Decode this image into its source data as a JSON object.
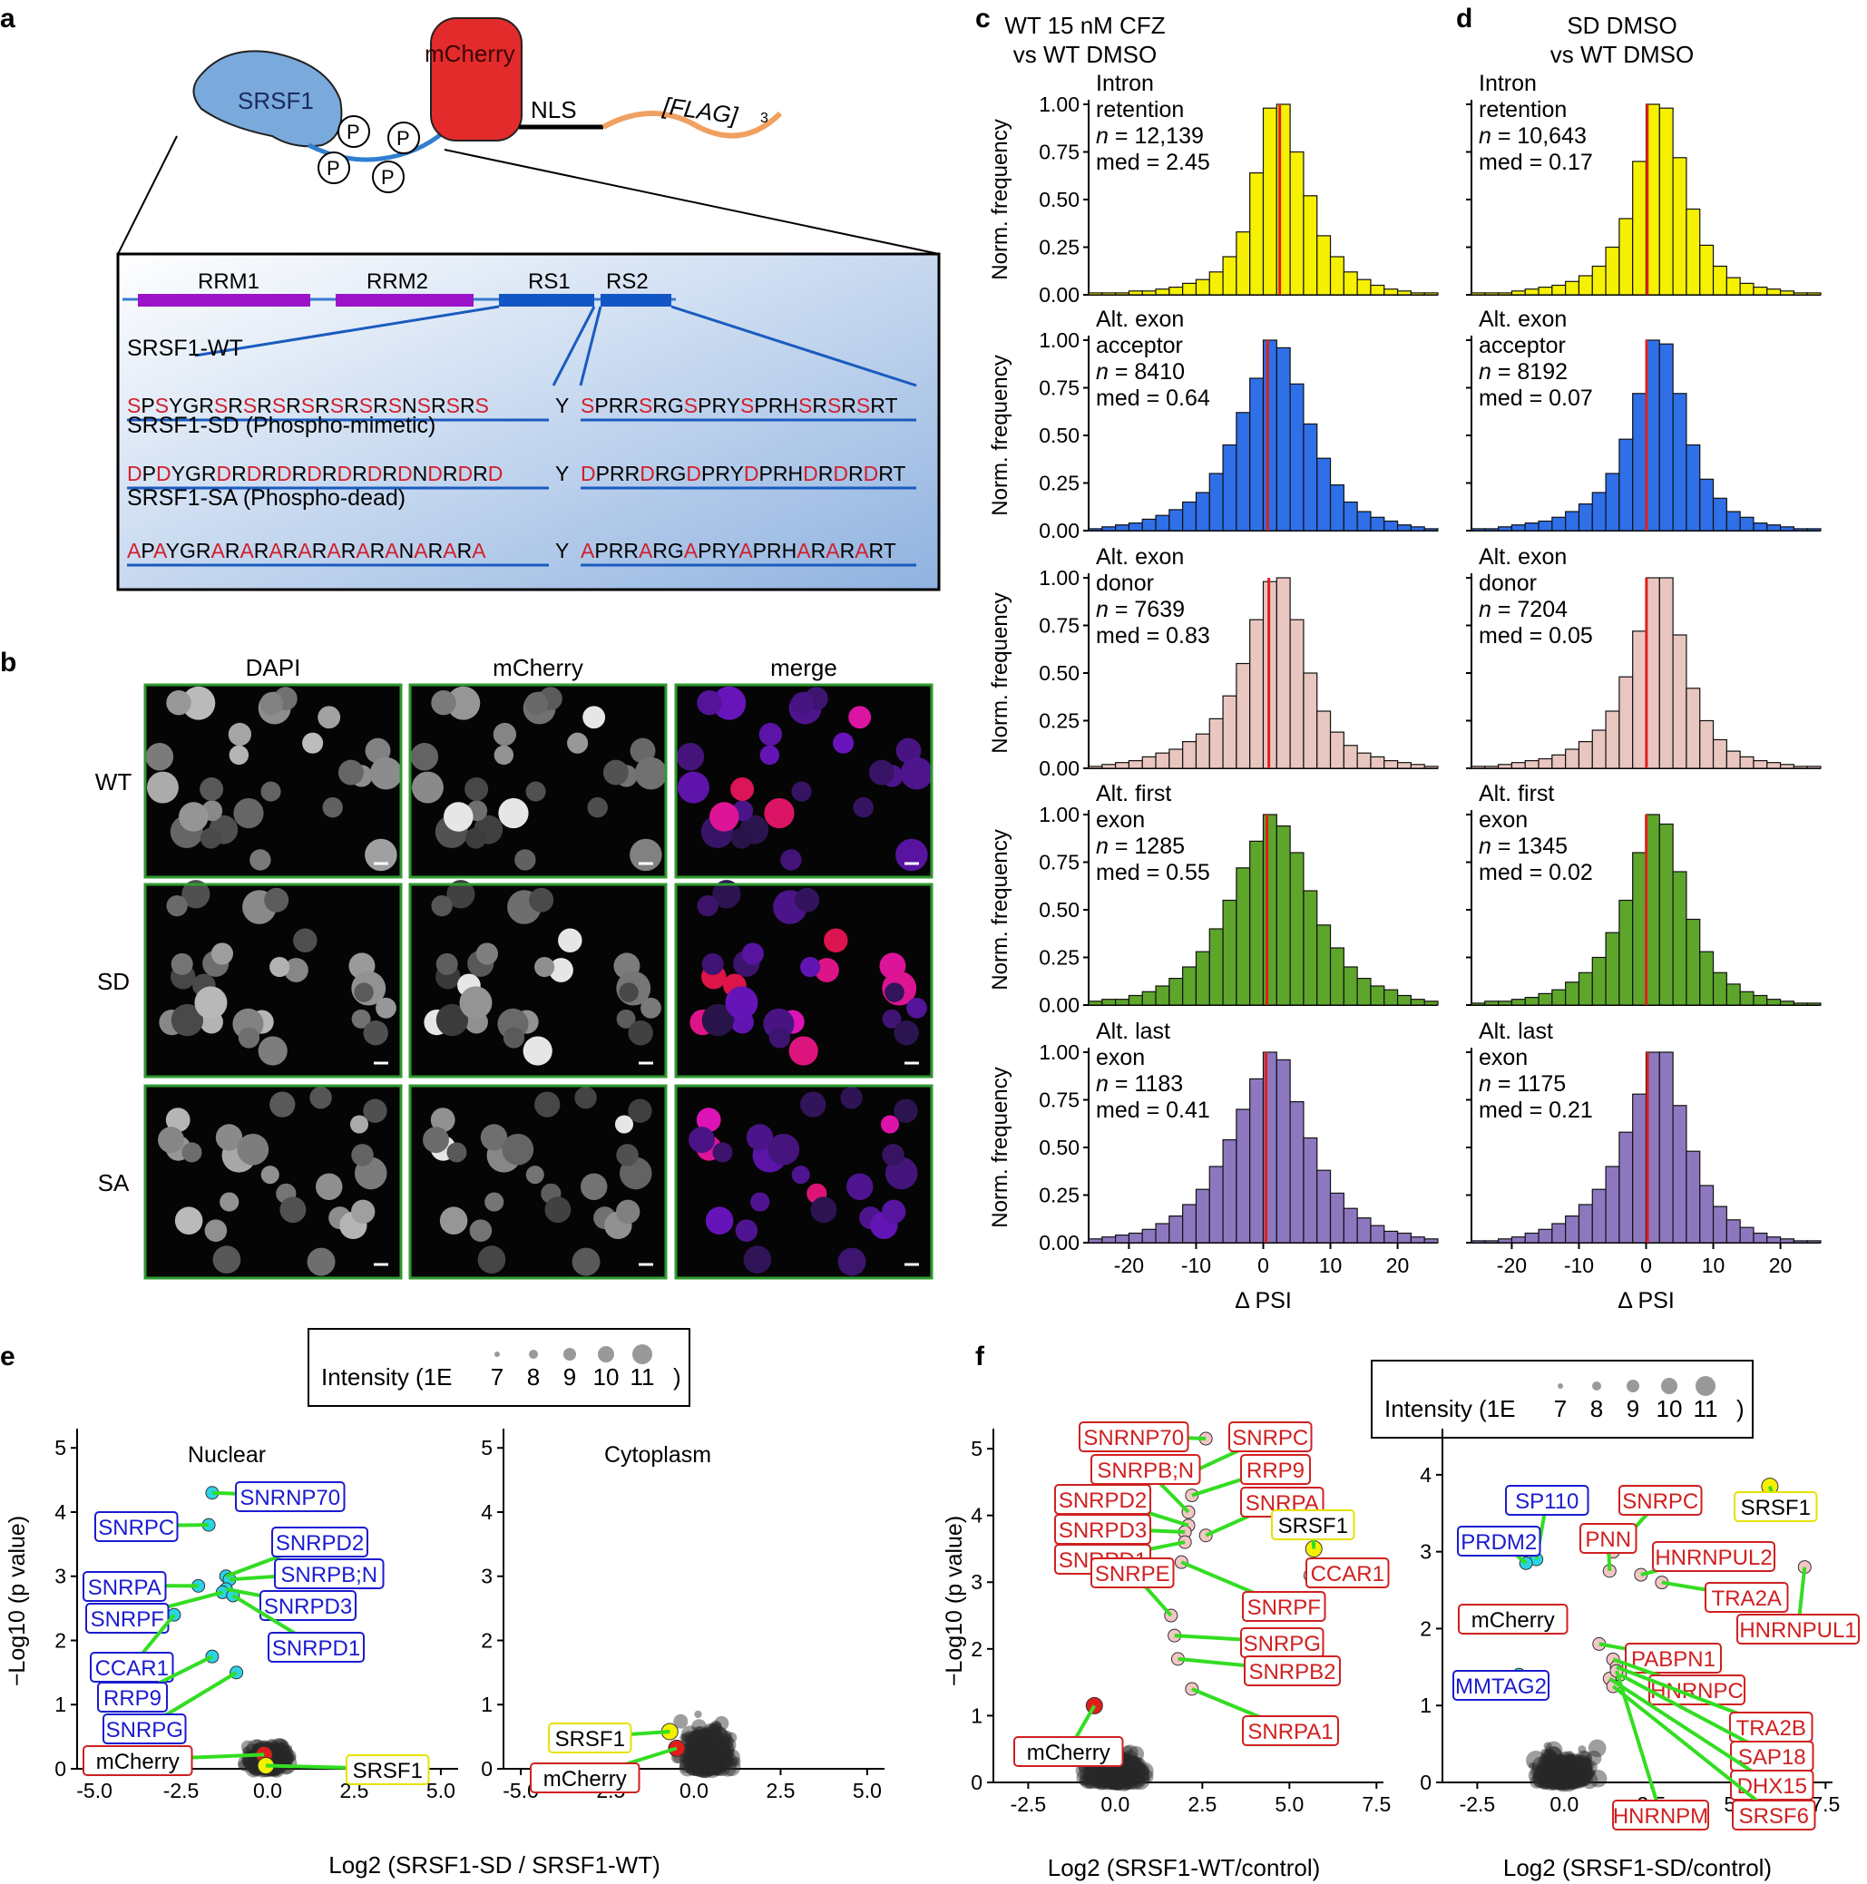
{
  "panels": {
    "a": {
      "letter": "a",
      "construct": {
        "srsf1": "SRSF1",
        "mcherry": "mCherry",
        "nls": "NLS",
        "flag": "[FLAG]",
        "flag_sub": "3",
        "p": "P"
      },
      "domains": {
        "rrm1": "RRM1",
        "rrm2": "RRM2",
        "rs1": "RS1",
        "rs2": "RS2"
      },
      "colors": {
        "rrm": "#9b14c9",
        "rs": "#1255c4",
        "accent_red": "#d11e2a",
        "box_line": "#1a5bbf"
      },
      "variants": [
        {
          "label": "SRSF1-WT",
          "seq1": "SPSYGRSRSRSRSRSRSRSNSRSRS",
          "mid": "Y",
          "seq2": "SPRRSRGSPRYSPRHSRSRSRT",
          "mut": "S"
        },
        {
          "label": "SRSF1-SD (Phospho-mimetic)",
          "seq1": "DPDYGRDRDRDRDRDRDRDNDRDRD",
          "mid": "Y",
          "seq2": "DPRRDRGDPRYDPRHDRDRDRT",
          "mut": "D"
        },
        {
          "label": "SRSF1-SA (Phospho-dead)",
          "seq1": "APAYGRARARARARARARANARARA",
          "mid": "Y",
          "seq2": "APRRARGAPRYAPRHARARART",
          "mut": "A"
        }
      ]
    },
    "b": {
      "letter": "b",
      "columns": [
        "DAPI",
        "mCherry",
        "merge"
      ],
      "rows": [
        "WT",
        "SD",
        "SA"
      ]
    },
    "c": {
      "letter": "c",
      "title_line1": "WT 15 nM CFZ",
      "title_line2": "vs WT DMSO",
      "stats": [
        {
          "line1": "Intron",
          "line2": "retention",
          "n": "12,139",
          "med": "2.45"
        },
        {
          "line1": "Alt. exon",
          "line2": "acceptor",
          "n": "8410",
          "med": "0.64"
        },
        {
          "line1": "Alt. exon",
          "line2": "donor",
          "n": "7639",
          "med": "0.83"
        },
        {
          "line1": "Alt. first",
          "line2": "exon",
          "n": "1285",
          "med": "0.55"
        },
        {
          "line1": "Alt. last",
          "line2": "exon",
          "n": "1183",
          "med": "0.41"
        }
      ]
    },
    "d": {
      "letter": "d",
      "title_line1": "SD DMSO",
      "title_line2": "vs WT DMSO",
      "stats": [
        {
          "line1": "Intron",
          "line2": "retention",
          "n": "10,643",
          "med": "0.17"
        },
        {
          "line1": "Alt. exon",
          "line2": "acceptor",
          "n": "8192",
          "med": "0.07"
        },
        {
          "line1": "Alt. exon",
          "line2": "donor",
          "n": "7204",
          "med": "0.05"
        },
        {
          "line1": "Alt. first",
          "line2": "exon",
          "n": "1345",
          "med": "0.02"
        },
        {
          "line1": "Alt. last",
          "line2": "exon",
          "n": "1175",
          "med": "0.21"
        }
      ]
    },
    "e": {
      "letter": "e",
      "legend": {
        "label": "Intensity (1E",
        "sizes": [
          "7",
          "8",
          "9",
          "10",
          "11"
        ],
        "close": ")"
      },
      "left_title": "Nuclear",
      "right_title": "Cytoplasm",
      "ylabel": "−Log10 (p value)",
      "xlabel": "Log2 (SRSF1-SD / SRSF1-WT)"
    },
    "f": {
      "letter": "f",
      "legend": {
        "label": "Intensity (1E",
        "sizes": [
          "7",
          "8",
          "9",
          "10",
          "11"
        ],
        "close": ")"
      },
      "xlabel_left": "Log2 (SRSF1-WT/control)",
      "xlabel_right": "Log2 (SRSF1-SD/control)"
    }
  },
  "chart_data": [
    {
      "type": "bar",
      "panel": "c",
      "title": "WT 15 nM CFZ vs WT DMSO",
      "xlabel": "Δ PSI",
      "ylabel": "Norm. frequency",
      "xlim": [
        -26,
        26
      ],
      "ylim": [
        0,
        1.0
      ],
      "xticks": [
        "-20",
        "-10",
        "0",
        "10",
        "20"
      ],
      "yticks": [
        "0.00",
        "0.25",
        "0.50",
        "0.75",
        "1.00"
      ],
      "bin_edges": [
        -26,
        -24,
        -22,
        -20,
        -18,
        -16,
        -14,
        -12,
        -10,
        -8,
        -6,
        -4,
        -2,
        0,
        2,
        4,
        6,
        8,
        10,
        12,
        14,
        16,
        18,
        20,
        22,
        24,
        26
      ],
      "median_line_color": "#e0201b",
      "series": [
        {
          "name": "Intron retention",
          "color": "#f6f003",
          "values": [
            0.01,
            0.01,
            0.01,
            0.02,
            0.02,
            0.03,
            0.04,
            0.06,
            0.08,
            0.12,
            0.2,
            0.33,
            0.64,
            0.98,
            1.0,
            0.75,
            0.52,
            0.31,
            0.2,
            0.12,
            0.08,
            0.05,
            0.03,
            0.02,
            0.01,
            0.01
          ]
        },
        {
          "name": "Alt. exon acceptor",
          "color": "#2f6fe8",
          "values": [
            0.01,
            0.02,
            0.03,
            0.04,
            0.06,
            0.08,
            0.11,
            0.15,
            0.2,
            0.3,
            0.45,
            0.62,
            0.8,
            1.0,
            0.96,
            0.77,
            0.56,
            0.38,
            0.24,
            0.15,
            0.1,
            0.07,
            0.05,
            0.03,
            0.02,
            0.01
          ]
        },
        {
          "name": "Alt. exon donor",
          "color": "#eac6c0",
          "values": [
            0.01,
            0.02,
            0.03,
            0.04,
            0.06,
            0.08,
            0.1,
            0.14,
            0.18,
            0.26,
            0.38,
            0.55,
            0.78,
            0.98,
            1.0,
            0.78,
            0.5,
            0.3,
            0.19,
            0.12,
            0.08,
            0.06,
            0.04,
            0.03,
            0.02,
            0.01
          ]
        },
        {
          "name": "Alt. first exon",
          "color": "#5ea52c",
          "values": [
            0.02,
            0.03,
            0.03,
            0.05,
            0.07,
            0.1,
            0.14,
            0.2,
            0.28,
            0.4,
            0.55,
            0.72,
            0.86,
            1.0,
            0.94,
            0.8,
            0.6,
            0.42,
            0.3,
            0.2,
            0.14,
            0.1,
            0.08,
            0.05,
            0.03,
            0.02
          ]
        },
        {
          "name": "Alt. last exon",
          "color": "#8d78c0",
          "values": [
            0.02,
            0.03,
            0.04,
            0.05,
            0.07,
            0.1,
            0.14,
            0.2,
            0.28,
            0.4,
            0.54,
            0.7,
            0.86,
            1.0,
            0.96,
            0.74,
            0.55,
            0.38,
            0.26,
            0.18,
            0.13,
            0.09,
            0.06,
            0.05,
            0.03,
            0.02
          ]
        }
      ]
    },
    {
      "type": "bar",
      "panel": "d",
      "title": "SD DMSO vs WT DMSO",
      "xlabel": "Δ PSI",
      "ylabel": "",
      "xlim": [
        -26,
        26
      ],
      "ylim": [
        0,
        1.0
      ],
      "xticks": [
        "-20",
        "-10",
        "0",
        "10",
        "20"
      ],
      "bin_edges": [
        -26,
        -24,
        -22,
        -20,
        -18,
        -16,
        -14,
        -12,
        -10,
        -8,
        -6,
        -4,
        -2,
        0,
        2,
        4,
        6,
        8,
        10,
        12,
        14,
        16,
        18,
        20,
        22,
        24,
        26
      ],
      "median_line_color": "#e0201b",
      "series": [
        {
          "name": "Intron retention",
          "color": "#f6f003",
          "values": [
            0.01,
            0.01,
            0.01,
            0.02,
            0.03,
            0.04,
            0.05,
            0.07,
            0.1,
            0.15,
            0.25,
            0.4,
            0.7,
            1.0,
            0.98,
            0.72,
            0.45,
            0.26,
            0.15,
            0.09,
            0.06,
            0.04,
            0.03,
            0.02,
            0.01,
            0.01
          ]
        },
        {
          "name": "Alt. exon acceptor",
          "color": "#2f6fe8",
          "values": [
            0.01,
            0.01,
            0.02,
            0.03,
            0.04,
            0.05,
            0.07,
            0.1,
            0.14,
            0.2,
            0.3,
            0.48,
            0.72,
            1.0,
            0.98,
            0.72,
            0.45,
            0.27,
            0.17,
            0.1,
            0.07,
            0.04,
            0.03,
            0.02,
            0.01,
            0.01
          ]
        },
        {
          "name": "Alt. exon donor",
          "color": "#eac6c0",
          "values": [
            0.01,
            0.01,
            0.02,
            0.03,
            0.04,
            0.05,
            0.07,
            0.1,
            0.14,
            0.2,
            0.3,
            0.48,
            0.72,
            1.0,
            1.0,
            0.7,
            0.42,
            0.25,
            0.15,
            0.09,
            0.06,
            0.04,
            0.03,
            0.02,
            0.01,
            0.01
          ]
        },
        {
          "name": "Alt. first exon",
          "color": "#5ea52c",
          "values": [
            0.01,
            0.02,
            0.02,
            0.03,
            0.04,
            0.06,
            0.08,
            0.12,
            0.17,
            0.25,
            0.38,
            0.55,
            0.8,
            1.0,
            0.95,
            0.7,
            0.45,
            0.28,
            0.17,
            0.11,
            0.07,
            0.05,
            0.03,
            0.02,
            0.01,
            0.01
          ]
        },
        {
          "name": "Alt. last exon",
          "color": "#8d78c0",
          "values": [
            0.01,
            0.01,
            0.02,
            0.03,
            0.05,
            0.07,
            0.1,
            0.14,
            0.2,
            0.28,
            0.4,
            0.58,
            0.78,
            1.0,
            1.0,
            0.72,
            0.48,
            0.3,
            0.19,
            0.12,
            0.08,
            0.05,
            0.03,
            0.02,
            0.01,
            0.01
          ]
        }
      ]
    },
    {
      "type": "scatter",
      "panel": "e-nuclear",
      "title": "Nuclear",
      "xlabel": "Log2 (SRSF1-SD / SRSF1-WT)",
      "ylabel": "−Log10 (p value)",
      "xlim": [
        -5.5,
        5.5
      ],
      "ylim": [
        0,
        5.3
      ],
      "xticks": [
        "-5.0",
        "-2.5",
        "0.0",
        "2.5",
        "5.0"
      ],
      "yticks": [
        "0",
        "1",
        "2",
        "3",
        "4",
        "5"
      ],
      "highlighted": [
        {
          "label": "SNRNP70",
          "x": -1.6,
          "y": 4.3,
          "group": "nuclear-down"
        },
        {
          "label": "SNRPC",
          "x": -1.7,
          "y": 3.8,
          "group": "nuclear-down"
        },
        {
          "label": "SNRPD2",
          "x": -1.2,
          "y": 3.0,
          "group": "nuclear-down"
        },
        {
          "label": "SNRPA",
          "x": -2.0,
          "y": 2.85,
          "group": "nuclear-down"
        },
        {
          "label": "SNRPB;N",
          "x": -1.1,
          "y": 2.95,
          "group": "nuclear-down"
        },
        {
          "label": "SNRPD3",
          "x": -1.2,
          "y": 2.8,
          "group": "nuclear-down"
        },
        {
          "label": "SNRPF",
          "x": -1.3,
          "y": 2.75,
          "group": "nuclear-down"
        },
        {
          "label": "SNRPD1",
          "x": -1.0,
          "y": 2.7,
          "group": "nuclear-down"
        },
        {
          "label": "CCAR1",
          "x": -2.7,
          "y": 2.4,
          "group": "nuclear-down"
        },
        {
          "label": "RRP9",
          "x": -1.6,
          "y": 1.75,
          "group": "nuclear-down"
        },
        {
          "label": "SNRPG",
          "x": -0.9,
          "y": 1.5,
          "group": "nuclear-down"
        },
        {
          "label": "mCherry",
          "x": -0.1,
          "y": 0.22,
          "group": "mcherry"
        },
        {
          "label": "SRSF1",
          "x": -0.05,
          "y": 0.05,
          "group": "srsf1"
        }
      ]
    },
    {
      "type": "scatter",
      "panel": "e-cytoplasm",
      "title": "Cytoplasm",
      "xlabel": "Log2 (SRSF1-SD / SRSF1-WT)",
      "xlim": [
        -5.5,
        5.5
      ],
      "ylim": [
        0,
        5.3
      ],
      "xticks": [
        "-5.0",
        "-2.5",
        "0.0",
        "2.5",
        "5.0"
      ],
      "yticks": [
        "0",
        "1",
        "2",
        "3",
        "4",
        "5"
      ],
      "highlighted": [
        {
          "label": "SRSF1",
          "x": -0.7,
          "y": 0.58,
          "group": "srsf1"
        },
        {
          "label": "mCherry",
          "x": -0.5,
          "y": 0.32,
          "group": "mcherry"
        }
      ]
    },
    {
      "type": "scatter",
      "panel": "f-wt",
      "xlabel": "Log2 (SRSF1-WT/control)",
      "ylabel": "−Log10 (p value)",
      "xlim": [
        -3.5,
        7.7
      ],
      "ylim": [
        0,
        5.3
      ],
      "xticks": [
        "-2.5",
        "0.0",
        "2.5",
        "5.0",
        "7.5"
      ],
      "yticks": [
        "0",
        "1",
        "2",
        "3",
        "4",
        "5"
      ],
      "highlighted": [
        {
          "label": "SNRNP70",
          "x": 2.6,
          "y": 5.15,
          "group": "up"
        },
        {
          "label": "SNRPC",
          "x": 2.0,
          "y": 4.6,
          "group": "up"
        },
        {
          "label": "RRP9",
          "x": 2.2,
          "y": 4.3,
          "group": "up"
        },
        {
          "label": "SNRPB;N",
          "x": 2.1,
          "y": 4.05,
          "group": "up"
        },
        {
          "label": "SNRPD2",
          "x": 2.1,
          "y": 3.85,
          "group": "up"
        },
        {
          "label": "SNRPA",
          "x": 2.6,
          "y": 3.7,
          "group": "up"
        },
        {
          "label": "SNRPD3",
          "x": 2.0,
          "y": 3.75,
          "group": "up"
        },
        {
          "label": "SNRPD1",
          "x": 2.0,
          "y": 3.6,
          "group": "up"
        },
        {
          "label": "SRSF1",
          "x": 5.7,
          "y": 3.5,
          "group": "srsf1"
        },
        {
          "label": "CCAR1",
          "x": 5.6,
          "y": 3.1,
          "group": "up"
        },
        {
          "label": "SNRPE",
          "x": 1.6,
          "y": 2.5,
          "group": "up"
        },
        {
          "label": "SNRPF",
          "x": 1.9,
          "y": 3.3,
          "group": "up"
        },
        {
          "label": "SNRPG",
          "x": 1.7,
          "y": 2.2,
          "group": "up"
        },
        {
          "label": "SNRPB2",
          "x": 1.8,
          "y": 1.85,
          "group": "up"
        },
        {
          "label": "SNRPA1",
          "x": 2.2,
          "y": 1.4,
          "group": "up"
        },
        {
          "label": "mCherry",
          "x": -0.6,
          "y": 1.15,
          "group": "mcherry"
        }
      ]
    },
    {
      "type": "scatter",
      "panel": "f-sd",
      "xlabel": "Log2 (SRSF1-SD/control)",
      "xlim": [
        -3.5,
        7.7
      ],
      "ylim": [
        0,
        4.6
      ],
      "xticks": [
        "-2.5",
        "0.0",
        "2.5",
        "5.0",
        "7.5"
      ],
      "yticks": [
        "0",
        "1",
        "2",
        "3",
        "4"
      ],
      "highlighted": [
        {
          "label": "SP110",
          "x": -0.8,
          "y": 2.9,
          "group": "down"
        },
        {
          "label": "PRDM2",
          "x": -1.1,
          "y": 2.85,
          "group": "down"
        },
        {
          "label": "SNRPC",
          "x": 1.4,
          "y": 3.0,
          "group": "up"
        },
        {
          "label": "SRSF1",
          "x": 5.9,
          "y": 3.85,
          "group": "srsf1"
        },
        {
          "label": "PNN",
          "x": 1.3,
          "y": 2.75,
          "group": "up"
        },
        {
          "label": "HNRNPUL2",
          "x": 2.2,
          "y": 2.7,
          "group": "up"
        },
        {
          "label": "TRA2A",
          "x": 2.8,
          "y": 2.6,
          "group": "up"
        },
        {
          "label": "HNRNPUL1",
          "x": 6.9,
          "y": 2.8,
          "group": "up"
        },
        {
          "label": "mCherry",
          "x": -0.9,
          "y": 2.1,
          "group": "mcherry"
        },
        {
          "label": "PABPN1",
          "x": 1.0,
          "y": 1.8,
          "group": "up"
        },
        {
          "label": "MMTAG2",
          "x": -1.3,
          "y": 1.4,
          "group": "down"
        },
        {
          "label": "HNRNPC",
          "x": 1.4,
          "y": 1.6,
          "group": "up"
        },
        {
          "label": "TRA2B",
          "x": 1.5,
          "y": 1.5,
          "group": "up"
        },
        {
          "label": "SAP18",
          "x": 1.6,
          "y": 1.4,
          "group": "up"
        },
        {
          "label": "DHX15",
          "x": 1.3,
          "y": 1.35,
          "group": "up"
        },
        {
          "label": "HNRNPM",
          "x": 1.5,
          "y": 1.45,
          "group": "up"
        },
        {
          "label": "SRSF6",
          "x": 1.4,
          "y": 1.25,
          "group": "up"
        }
      ]
    }
  ]
}
